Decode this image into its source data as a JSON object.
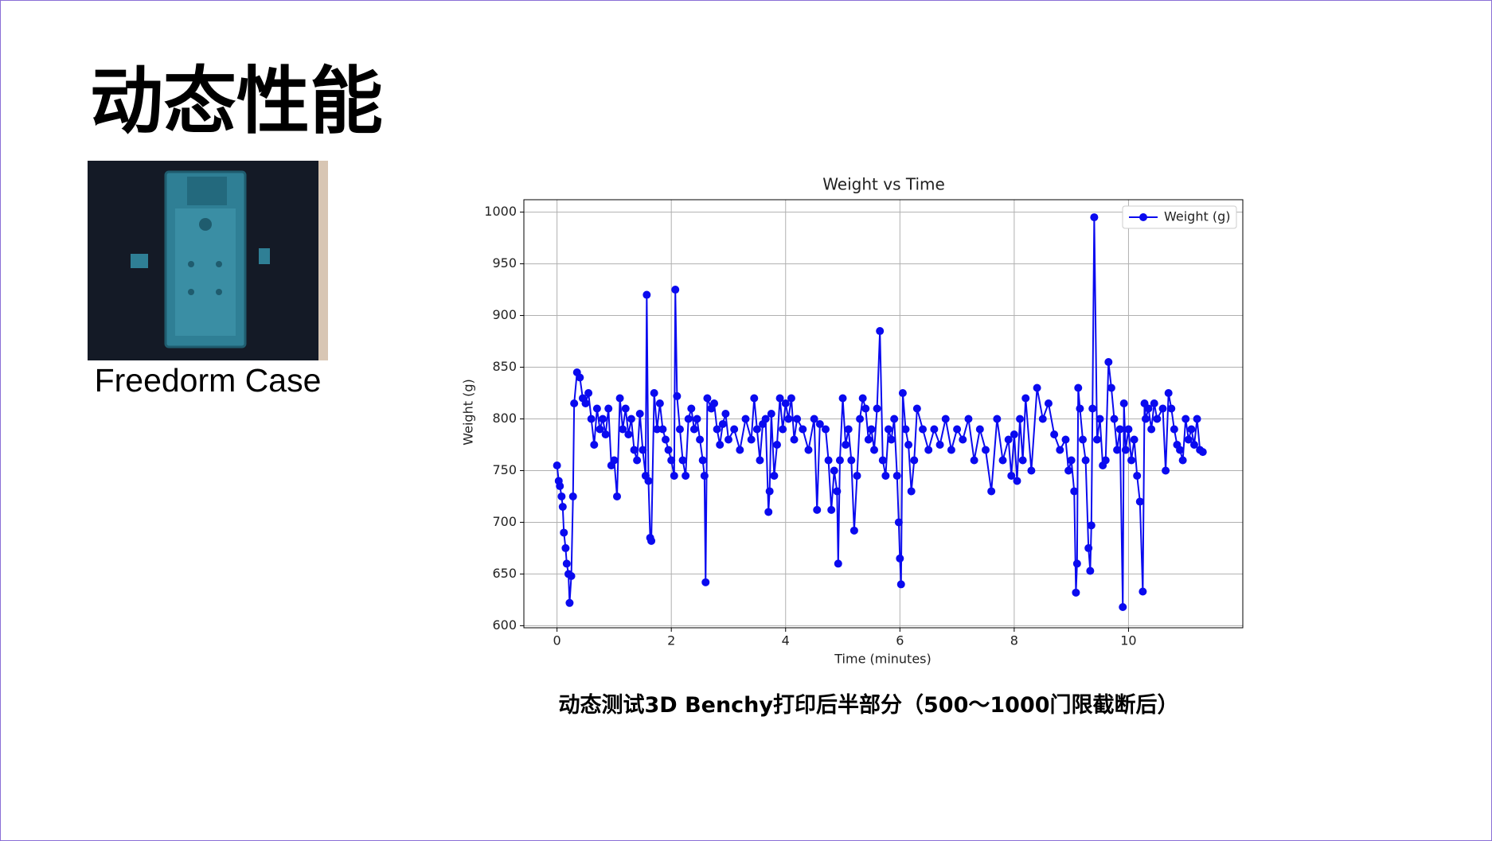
{
  "slide": {
    "title": "动态性能",
    "image_caption": "Freedorm Case",
    "caption": "动态测试3D Benchy打印后半部分（500～1000门限截断后）"
  },
  "chart_data": {
    "type": "line",
    "title": "Weight vs Time",
    "x_label": "Time (minutes)",
    "y_label": "Weight (g)",
    "x": [
      0,
      0.03,
      0.05,
      0.08,
      0.1,
      0.12,
      0.15,
      0.17,
      0.2,
      0.22,
      0.25,
      0.28,
      0.3,
      0.35,
      0.4,
      0.45,
      0.5,
      0.55,
      0.6,
      0.65,
      0.7,
      0.75,
      0.8,
      0.85,
      0.9,
      0.95,
      1.0,
      1.05,
      1.1,
      1.15,
      1.2,
      1.25,
      1.3,
      1.35,
      1.4,
      1.45,
      1.5,
      1.55,
      1.57,
      1.6,
      1.63,
      1.65,
      1.7,
      1.75,
      1.8,
      1.85,
      1.9,
      1.95,
      2.0,
      2.05,
      2.07,
      2.1,
      2.15,
      2.2,
      2.25,
      2.3,
      2.35,
      2.4,
      2.45,
      2.5,
      2.55,
      2.58,
      2.6,
      2.63,
      2.7,
      2.75,
      2.8,
      2.85,
      2.9,
      2.95,
      3.0,
      3.1,
      3.2,
      3.3,
      3.4,
      3.45,
      3.5,
      3.55,
      3.6,
      3.65,
      3.7,
      3.72,
      3.75,
      3.8,
      3.85,
      3.9,
      3.95,
      4.0,
      4.05,
      4.1,
      4.15,
      4.2,
      4.3,
      4.4,
      4.5,
      4.55,
      4.6,
      4.7,
      4.75,
      4.8,
      4.85,
      4.9,
      4.92,
      4.95,
      5.0,
      5.05,
      5.1,
      5.15,
      5.2,
      5.25,
      5.3,
      5.35,
      5.4,
      5.45,
      5.5,
      5.55,
      5.6,
      5.65,
      5.7,
      5.75,
      5.8,
      5.85,
      5.9,
      5.95,
      5.98,
      6.0,
      6.02,
      6.05,
      6.1,
      6.15,
      6.2,
      6.25,
      6.3,
      6.4,
      6.5,
      6.6,
      6.7,
      6.8,
      6.9,
      7.0,
      7.1,
      7.2,
      7.3,
      7.4,
      7.5,
      7.6,
      7.7,
      7.8,
      7.9,
      7.95,
      8.0,
      8.05,
      8.1,
      8.15,
      8.2,
      8.3,
      8.4,
      8.5,
      8.6,
      8.7,
      8.8,
      8.9,
      8.95,
      9.0,
      9.05,
      9.08,
      9.1,
      9.12,
      9.15,
      9.2,
      9.25,
      9.3,
      9.33,
      9.35,
      9.37,
      9.4,
      9.45,
      9.5,
      9.55,
      9.6,
      9.65,
      9.7,
      9.75,
      9.8,
      9.85,
      9.9,
      9.92,
      9.95,
      10.0,
      10.05,
      10.1,
      10.15,
      10.2,
      10.25,
      10.28,
      10.3,
      10.35,
      10.4,
      10.45,
      10.5,
      10.6,
      10.65,
      10.7,
      10.75,
      10.8,
      10.85,
      10.9,
      10.95,
      11.0,
      11.05,
      11.1,
      11.15,
      11.2,
      11.25,
      11.3
    ],
    "series": [
      {
        "name": "Weight (g)",
        "color": "#0a0aef",
        "values": [
          755,
          740,
          735,
          725,
          715,
          690,
          675,
          660,
          650,
          622,
          648,
          725,
          815,
          845,
          840,
          820,
          815,
          825,
          800,
          775,
          810,
          790,
          800,
          785,
          810,
          755,
          760,
          725,
          820,
          790,
          810,
          785,
          800,
          770,
          760,
          805,
          770,
          745,
          920,
          740,
          685,
          682,
          825,
          790,
          815,
          790,
          780,
          770,
          760,
          745,
          925,
          822,
          790,
          760,
          745,
          800,
          810,
          790,
          800,
          780,
          760,
          745,
          642,
          820,
          810,
          815,
          790,
          775,
          795,
          805,
          780,
          790,
          770,
          800,
          780,
          820,
          790,
          760,
          795,
          800,
          710,
          730,
          805,
          745,
          775,
          820,
          790,
          815,
          800,
          820,
          780,
          800,
          790,
          770,
          800,
          712,
          795,
          790,
          760,
          712,
          750,
          730,
          660,
          760,
          820,
          775,
          790,
          760,
          692,
          745,
          800,
          820,
          810,
          780,
          790,
          770,
          810,
          885,
          760,
          745,
          790,
          780,
          800,
          745,
          700,
          665,
          640,
          825,
          790,
          775,
          730,
          760,
          810,
          790,
          770,
          790,
          775,
          800,
          770,
          790,
          780,
          800,
          760,
          790,
          770,
          730,
          800,
          760,
          780,
          745,
          785,
          740,
          800,
          760,
          820,
          750,
          830,
          800,
          815,
          785,
          770,
          780,
          750,
          760,
          730,
          632,
          660,
          830,
          810,
          780,
          760,
          675,
          653,
          697,
          810,
          995,
          780,
          800,
          755,
          760,
          855,
          830,
          800,
          770,
          790,
          618,
          815,
          770,
          790,
          760,
          780,
          745,
          720,
          633,
          815,
          800,
          810,
          790,
          815,
          800,
          810,
          750,
          825,
          810,
          790,
          775,
          770,
          760,
          800,
          780,
          790,
          775,
          800,
          770,
          768
        ]
      }
    ],
    "xlim": [
      -0.58,
      12
    ],
    "ylim": [
      598,
      1012
    ],
    "xticks": [
      0,
      2,
      4,
      6,
      8,
      10
    ],
    "yticks": [
      600,
      650,
      700,
      750,
      800,
      850,
      900,
      950,
      1000
    ],
    "grid": true,
    "legend": "upper right"
  }
}
